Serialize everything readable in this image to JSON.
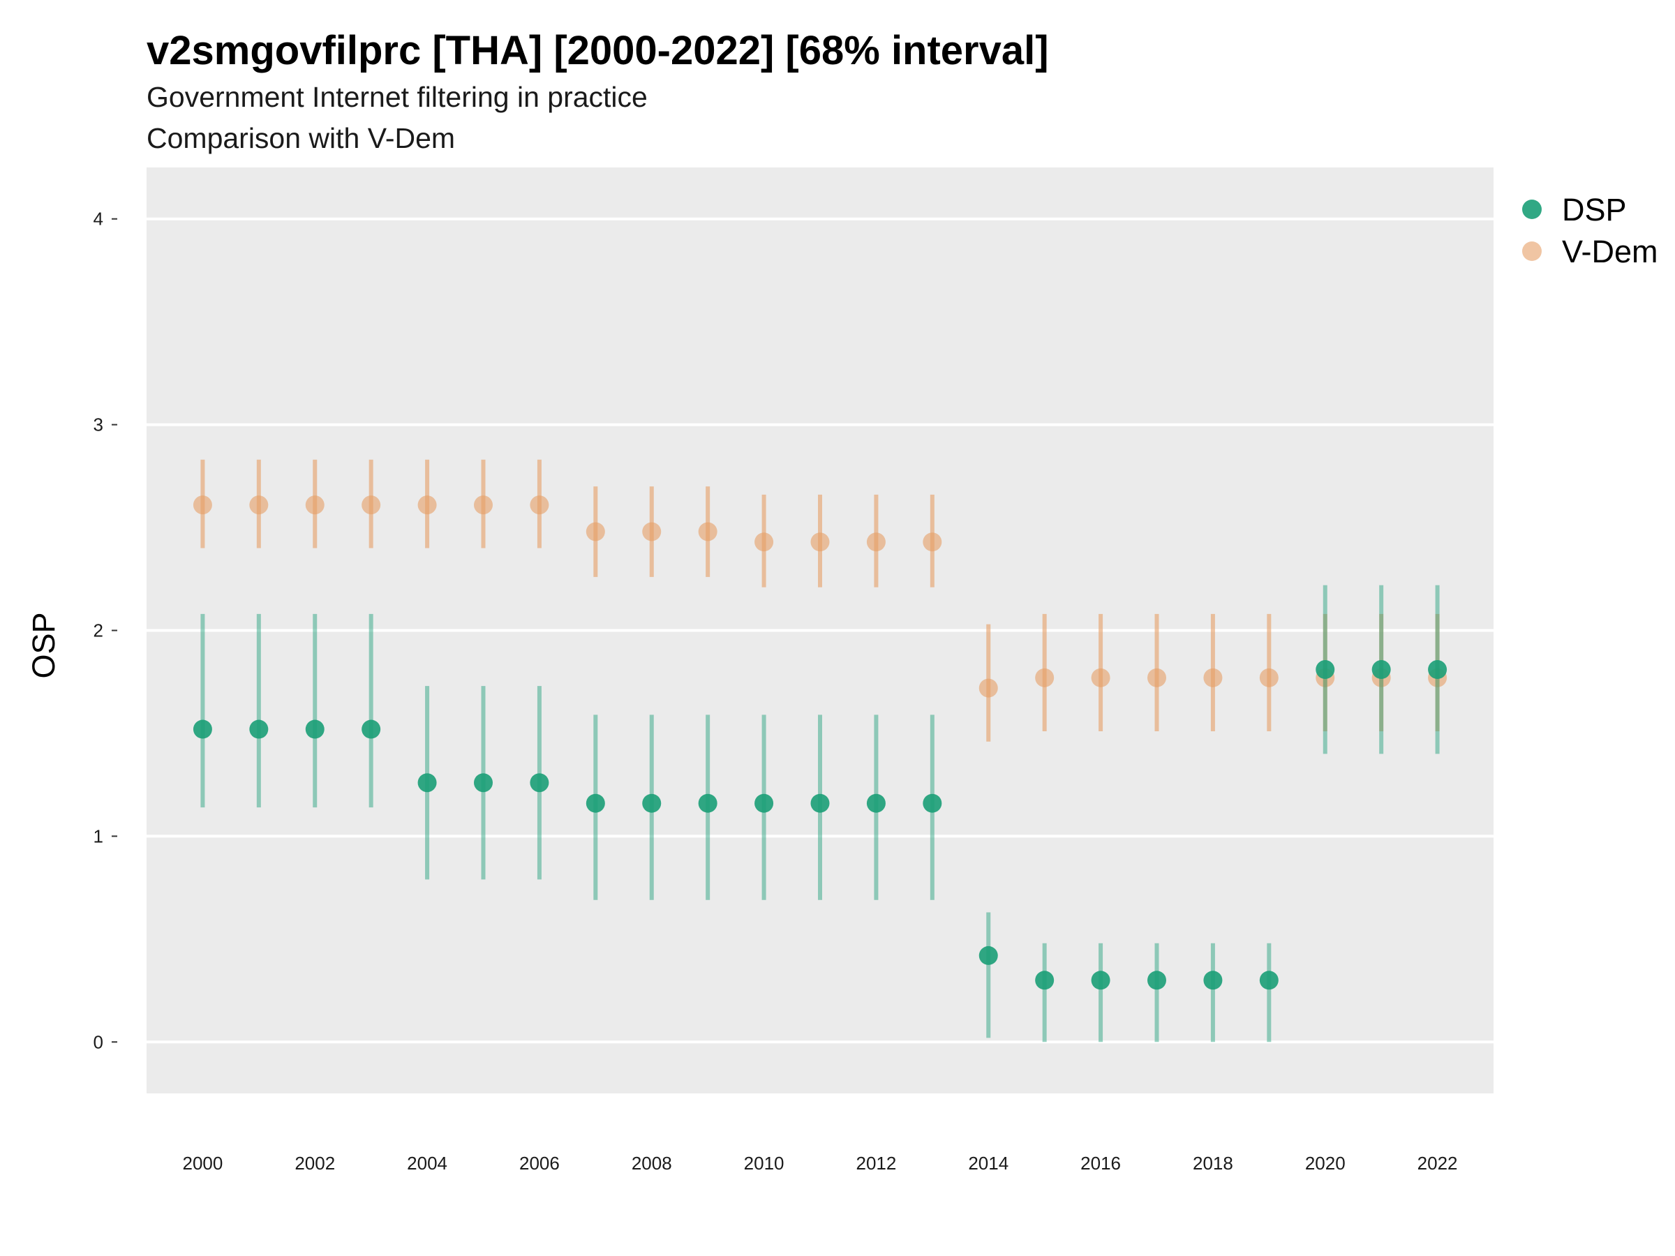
{
  "chart_data": {
    "type": "scatter",
    "title": "v2smgovfilprc [THA] [2000-2022] [68% interval]",
    "subtitle_lines": [
      "Government Internet filtering in practice",
      "Comparison with V-Dem"
    ],
    "xlabel": "",
    "ylabel": "OSP",
    "ylim": [
      -0.25,
      4.25
    ],
    "y_ticks": [
      0,
      1,
      2,
      3,
      4
    ],
    "x_ticks": [
      2000,
      2002,
      2004,
      2006,
      2008,
      2010,
      2012,
      2014,
      2016,
      2018,
      2020,
      2022
    ],
    "grid": true,
    "legend_position": "right",
    "x": [
      2000,
      2001,
      2002,
      2003,
      2004,
      2005,
      2006,
      2007,
      2008,
      2009,
      2010,
      2011,
      2012,
      2013,
      2014,
      2015,
      2016,
      2017,
      2018,
      2019,
      2020,
      2021,
      2022
    ],
    "series": [
      {
        "name": "V-Dem",
        "color": "#E69F65",
        "values": [
          2.61,
          2.61,
          2.61,
          2.61,
          2.61,
          2.61,
          2.61,
          2.48,
          2.48,
          2.48,
          2.43,
          2.43,
          2.43,
          2.43,
          1.72,
          1.77,
          1.77,
          1.77,
          1.77,
          1.77,
          1.77,
          1.77,
          1.77
        ],
        "lower": [
          2.4,
          2.4,
          2.4,
          2.4,
          2.4,
          2.4,
          2.4,
          2.26,
          2.26,
          2.26,
          2.21,
          2.21,
          2.21,
          2.21,
          1.46,
          1.51,
          1.51,
          1.51,
          1.51,
          1.51,
          1.51,
          1.51,
          1.51
        ],
        "upper": [
          2.83,
          2.83,
          2.83,
          2.83,
          2.83,
          2.83,
          2.83,
          2.7,
          2.7,
          2.7,
          2.66,
          2.66,
          2.66,
          2.66,
          2.03,
          2.08,
          2.08,
          2.08,
          2.08,
          2.08,
          2.08,
          2.08,
          2.08
        ]
      },
      {
        "name": "DSP",
        "color": "#1B9E77",
        "values": [
          1.52,
          1.52,
          1.52,
          1.52,
          1.26,
          1.26,
          1.26,
          1.16,
          1.16,
          1.16,
          1.16,
          1.16,
          1.16,
          1.16,
          0.42,
          0.3,
          0.3,
          0.3,
          0.3,
          0.3,
          1.81,
          1.81,
          1.81
        ],
        "lower": [
          1.14,
          1.14,
          1.14,
          1.14,
          0.79,
          0.79,
          0.79,
          0.69,
          0.69,
          0.69,
          0.69,
          0.69,
          0.69,
          0.69,
          0.02,
          0.0,
          0.0,
          0.0,
          0.0,
          0.0,
          1.4,
          1.4,
          1.4
        ],
        "upper": [
          2.08,
          2.08,
          2.08,
          2.08,
          1.73,
          1.73,
          1.73,
          1.59,
          1.59,
          1.59,
          1.59,
          1.59,
          1.59,
          1.59,
          0.63,
          0.48,
          0.48,
          0.48,
          0.48,
          0.48,
          2.22,
          2.22,
          2.22
        ]
      }
    ],
    "legend": [
      {
        "name": "DSP",
        "color": "#1B9E77"
      },
      {
        "name": "V-Dem",
        "color": "#E69F65"
      }
    ]
  }
}
